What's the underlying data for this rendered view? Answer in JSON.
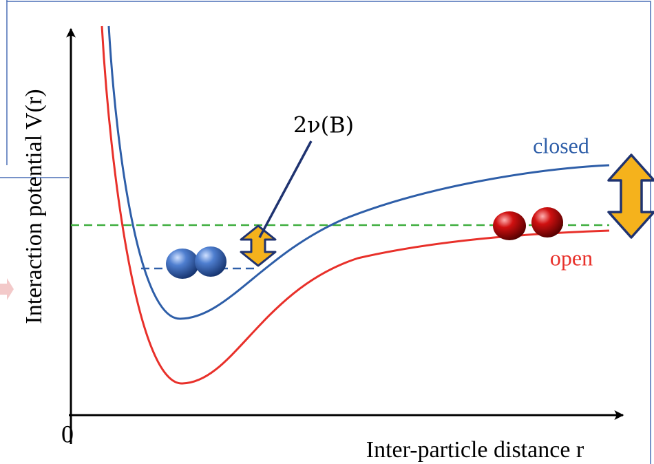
{
  "y_axis_label": "Interaction potential V(r)",
  "x_axis_label": "Inter-particle distance r",
  "origin_label": "0",
  "closed_label": "closed",
  "open_label": "open",
  "detuning_label": "2ν(B)"
}
